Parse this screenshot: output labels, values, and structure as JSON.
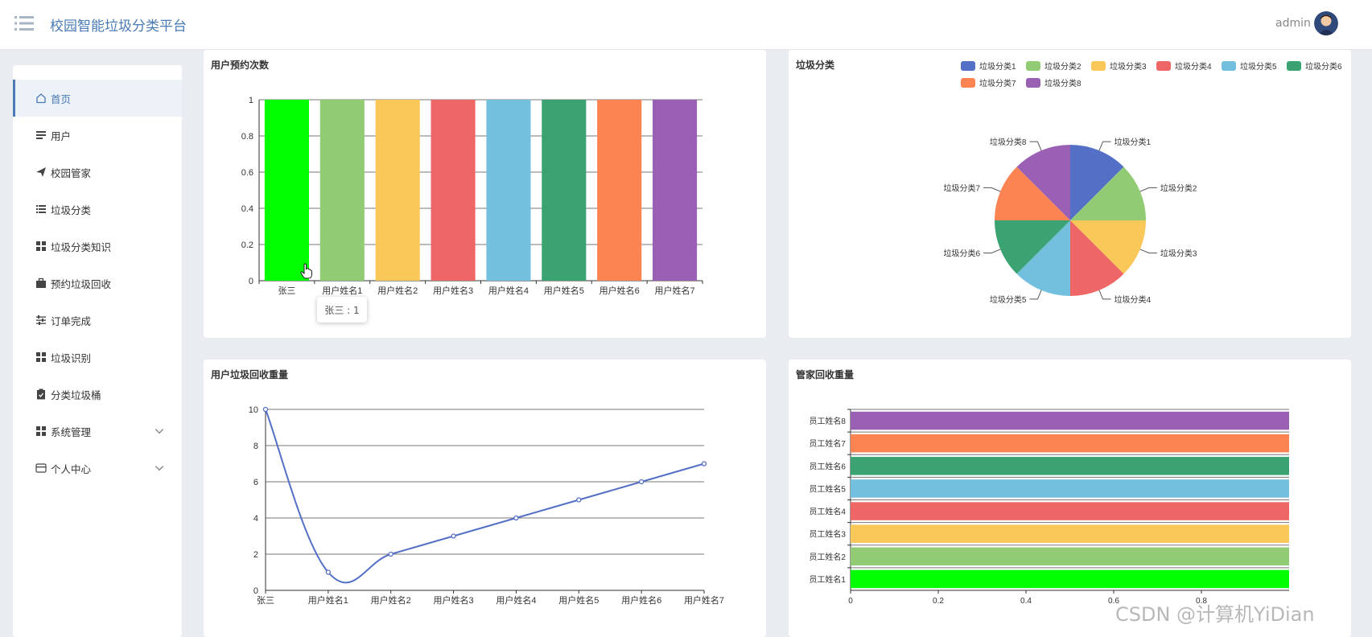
{
  "header": {
    "title": "校园智能垃圾分类平台",
    "user": "admin"
  },
  "sidebar": {
    "items": [
      {
        "label": "首页",
        "icon": "home-icon"
      },
      {
        "label": "用户",
        "icon": "list-icon"
      },
      {
        "label": "校园管家",
        "icon": "send-icon"
      },
      {
        "label": "垃圾分类",
        "icon": "list-icon"
      },
      {
        "label": "垃圾分类知识",
        "icon": "grid-icon"
      },
      {
        "label": "预约垃圾回收",
        "icon": "briefcase-icon"
      },
      {
        "label": "订单完成",
        "icon": "sliders-icon"
      },
      {
        "label": "垃圾识别",
        "icon": "grid-icon"
      },
      {
        "label": "分类垃圾桶",
        "icon": "clipboard-icon"
      },
      {
        "label": "系统管理",
        "icon": "grid-icon"
      },
      {
        "label": "个人中心",
        "icon": "card-icon"
      }
    ]
  },
  "palette": [
    "#5470c6",
    "#91cc75",
    "#fac858",
    "#ee6666",
    "#73c0de",
    "#3ba272",
    "#fc8452",
    "#9a60b4"
  ],
  "highlight_color": "#00ff00",
  "tooltip": {
    "text": "张三 : 1"
  },
  "watermark": "CSDN @计算机YiDian",
  "chart_data": [
    {
      "id": "bar1",
      "type": "bar",
      "title": "用户预约次数",
      "categories": [
        "张三",
        "用户姓名1",
        "用户姓名2",
        "用户姓名3",
        "用户姓名4",
        "用户姓名5",
        "用户姓名6",
        "用户姓名7"
      ],
      "values": [
        1,
        1,
        1,
        1,
        1,
        1,
        1,
        1
      ],
      "ylim": [
        0,
        1
      ],
      "yticks": [
        0,
        0.2,
        0.4,
        0.6,
        0.8,
        1
      ],
      "ytick_labels": [
        "0",
        "0.2",
        "0.4",
        "0.6",
        "0.8",
        "1"
      ]
    },
    {
      "id": "pie1",
      "type": "pie",
      "title": "垃圾分类",
      "labels": [
        "垃圾分类1",
        "垃圾分类2",
        "垃圾分类3",
        "垃圾分类4",
        "垃圾分类5",
        "垃圾分类6",
        "垃圾分类7",
        "垃圾分类8"
      ],
      "values": [
        1,
        1,
        1,
        1,
        1,
        1,
        1,
        1
      ],
      "legend": "top-right"
    },
    {
      "id": "line1",
      "type": "line",
      "title": "用户垃圾回收重量",
      "categories": [
        "张三",
        "用户姓名1",
        "用户姓名2",
        "用户姓名3",
        "用户姓名4",
        "用户姓名5",
        "用户姓名6",
        "用户姓名7"
      ],
      "values": [
        10,
        1,
        2,
        3,
        4,
        5,
        6,
        7
      ],
      "ylim": [
        0,
        10
      ],
      "yticks": [
        0,
        2,
        4,
        6,
        8,
        10
      ],
      "ytick_labels": [
        "0",
        "2",
        "4",
        "6",
        "8",
        "10"
      ],
      "smooth": true
    },
    {
      "id": "hbar1",
      "type": "bar",
      "orientation": "horizontal",
      "title": "管家回收重量",
      "categories": [
        "员工姓名1",
        "员工姓名2",
        "员工姓名3",
        "员工姓名4",
        "员工姓名5",
        "员工姓名6",
        "员工姓名7",
        "员工姓名8"
      ],
      "values": [
        1,
        1,
        1,
        1,
        1,
        1,
        1,
        1
      ],
      "xlim": [
        0,
        1
      ],
      "xticks": [
        0,
        0.2,
        0.4,
        0.6,
        0.8
      ],
      "xtick_labels": [
        "0",
        "0.2",
        "0.4",
        "0.6",
        "0.8"
      ]
    }
  ]
}
